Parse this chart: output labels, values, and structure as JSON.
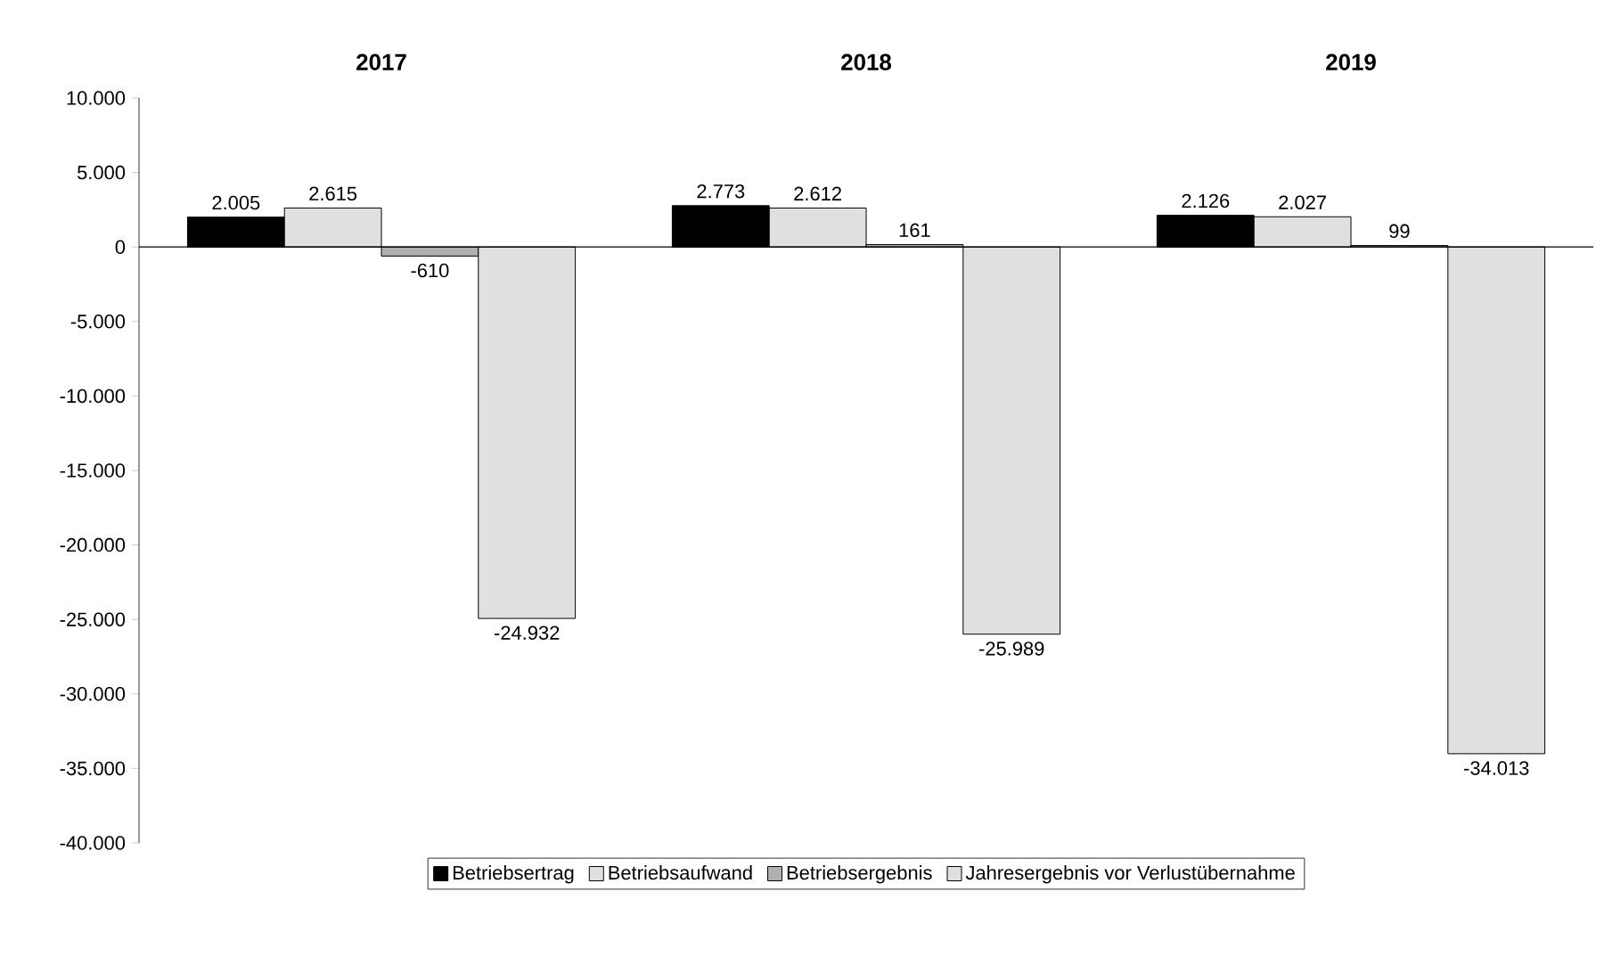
{
  "chart_data": {
    "type": "bar",
    "categories": [
      "2017",
      "2018",
      "2019"
    ],
    "series": [
      {
        "name": "Betriebsertrag",
        "color": "#000000",
        "values": [
          2005,
          2773,
          2126
        ],
        "value_labels": [
          "2.005",
          "2.773",
          "2.126"
        ]
      },
      {
        "name": "Betriebsaufwand",
        "color": "#e0e0e0",
        "values": [
          2615,
          2612,
          2027
        ],
        "value_labels": [
          "2.615",
          "2.612",
          "2.027"
        ]
      },
      {
        "name": "Betriebsergebnis",
        "color": "#b0b0b0",
        "values": [
          -610,
          161,
          99
        ],
        "value_labels": [
          "-610",
          "161",
          "99"
        ]
      },
      {
        "name": "Jahresergebnis vor Verlustübernahme",
        "color": "#e0e0e0",
        "values": [
          -24932,
          -25989,
          -34013
        ],
        "value_labels": [
          "-24.932",
          "-25.989",
          "-34.013"
        ]
      }
    ],
    "ylim": [
      -40000,
      10000
    ],
    "yticks": [
      {
        "value": 10000,
        "label": "10.000"
      },
      {
        "value": 5000,
        "label": "5.000"
      },
      {
        "value": 0,
        "label": "0"
      },
      {
        "value": -5000,
        "label": "-5.000"
      },
      {
        "value": -10000,
        "label": "-10.000"
      },
      {
        "value": -15000,
        "label": "-15.000"
      },
      {
        "value": -20000,
        "label": "-20.000"
      },
      {
        "value": -25000,
        "label": "-25.000"
      },
      {
        "value": -30000,
        "label": "-30.000"
      },
      {
        "value": -35000,
        "label": "-35.000"
      },
      {
        "value": -40000,
        "label": "-40.000"
      }
    ],
    "legend": "bottom"
  }
}
